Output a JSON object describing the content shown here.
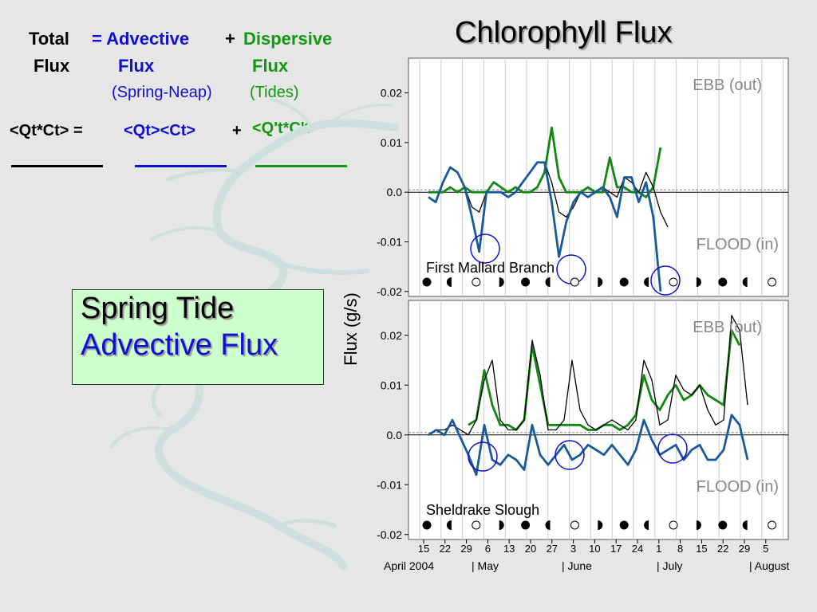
{
  "equation": {
    "total": "Total",
    "total_flux": "Flux",
    "equals_advective": "= Advective",
    "plus1": "+",
    "dispersive": "Dispersive",
    "adv_flux": "Flux",
    "disp_flux": "Flux",
    "spring_neap": "(Spring-Neap)",
    "tides": "(Tides)",
    "qtct": "<Qt*Ct> =",
    "qtct_adv": "<Qt><Ct>",
    "plus2": "+",
    "qtct_disp": "<Q't*C't>"
  },
  "spring_box": {
    "line1": "Spring Tide",
    "line2": "Advective Flux"
  },
  "colors": {
    "advective": "#1a5a9a",
    "dispersive": "#118811",
    "total": "#000000",
    "map": "#cde0de"
  },
  "chart_data": [
    {
      "type": "line",
      "title": "Chlorophyll Flux",
      "station": "First Mallard Branch",
      "ylabel": "Flux (g/s)",
      "ylim": [
        -0.021,
        0.027
      ],
      "yticks": [
        "0.02",
        "0.01",
        "0.0",
        "-0.01",
        "-0.02"
      ],
      "ebb_label": "EBB (out)",
      "flood_label": "FLOOD (in)",
      "moon_phases": [
        "full",
        "last",
        "new",
        "first",
        "full",
        "last",
        "new",
        "first",
        "full",
        "last",
        "new",
        "first",
        "full",
        "last",
        "new"
      ],
      "series": [
        {
          "name": "Total",
          "x": [
            0,
            2,
            4,
            6,
            8,
            10,
            12,
            14,
            16,
            18,
            20,
            22,
            24,
            26,
            28,
            30,
            32,
            34,
            36,
            38,
            40,
            42,
            44,
            46,
            48,
            50,
            52,
            54,
            56,
            58,
            60,
            62,
            64,
            66,
            68,
            70,
            72,
            74,
            76,
            78,
            80,
            82,
            84,
            86,
            88,
            90,
            92,
            94,
            96,
            98,
            100
          ],
          "y": [
            -0.001,
            -0.002,
            0.002,
            0.005,
            0.004,
            0.001,
            -0.003,
            -0.004,
            0.0,
            0.0,
            0.0,
            -0.001,
            0.0,
            0.002,
            0.004,
            0.006,
            0.006,
            0.002,
            -0.004,
            -0.005,
            -0.003,
            0.0,
            -0.001,
            0.0,
            0.001,
            0.0,
            -0.001,
            0.003,
            0.002,
            0.0,
            0.004,
            0.001,
            -0.004,
            -0.007,
            null,
            null,
            null,
            null,
            null,
            null,
            null,
            null,
            null,
            null,
            null,
            null,
            null,
            null,
            null,
            null,
            null
          ]
        },
        {
          "name": "Dispersive",
          "x": [
            0,
            2,
            4,
            6,
            8,
            10,
            12,
            14,
            16,
            18,
            20,
            22,
            24,
            26,
            28,
            30,
            32,
            34,
            36,
            38,
            40,
            42,
            44,
            46,
            48,
            50,
            52,
            54,
            56,
            58,
            60,
            62,
            64,
            66
          ],
          "y": [
            0.0,
            0.0,
            0.0,
            0.001,
            0.0,
            0.001,
            0.0,
            0.0,
            0.0,
            0.002,
            0.001,
            0.0,
            0.001,
            0.0,
            0.0,
            0.001,
            0.004,
            0.013,
            0.003,
            0.0,
            0.0,
            0.0,
            0.001,
            0.0,
            0.0,
            0.007,
            0.001,
            0.001,
            0.0,
            0.0,
            -0.001,
            0.001,
            0.009,
            null
          ]
        },
        {
          "name": "Advective",
          "x": [
            0,
            2,
            4,
            6,
            8,
            10,
            12,
            14,
            16,
            18,
            20,
            22,
            24,
            26,
            28,
            30,
            32,
            34,
            36,
            38,
            40,
            42,
            44,
            46,
            48,
            50,
            52,
            54,
            56,
            58,
            60,
            62,
            64,
            66
          ],
          "y": [
            -0.001,
            -0.002,
            0.002,
            0.005,
            0.004,
            0.001,
            -0.005,
            -0.012,
            0.0,
            0.0,
            0.0,
            -0.001,
            0.0,
            0.002,
            0.004,
            0.006,
            0.006,
            -0.002,
            -0.013,
            -0.006,
            -0.002,
            0.0,
            -0.001,
            0.0,
            0.001,
            -0.001,
            -0.005,
            0.003,
            0.003,
            -0.002,
            0.002,
            -0.005,
            -0.02,
            null
          ]
        }
      ]
    },
    {
      "type": "line",
      "station": "Sheldrake Slough",
      "ylim": [
        -0.021,
        0.027
      ],
      "yticks": [
        "0.02",
        "0.01",
        "0.0",
        "-0.01",
        "-0.02"
      ],
      "ebb_label": "EBB (out)",
      "flood_label": "FLOOD (in)",
      "moon_phases": [
        "full",
        "last",
        "new",
        "first",
        "full",
        "last",
        "new",
        "first",
        "full",
        "last",
        "new",
        "first",
        "full",
        "last",
        "new"
      ],
      "x_ticks": [
        "15",
        "22",
        "29",
        "6",
        "13",
        "20",
        "27",
        "3",
        "10",
        "17",
        "24",
        "1",
        "8",
        "15",
        "22",
        "29",
        "5"
      ],
      "month_labels": [
        "April 2004",
        "| May",
        "| June",
        "| July",
        "| August"
      ],
      "series": [
        {
          "name": "Total",
          "x": [
            0,
            1,
            2,
            3,
            5,
            6,
            7,
            8,
            9,
            10,
            11,
            12,
            13,
            14,
            15,
            16,
            17,
            18,
            19,
            20,
            21,
            22,
            23,
            24,
            25,
            26,
            27,
            28,
            29,
            30,
            31,
            32,
            33,
            34,
            35,
            36,
            37,
            38,
            39,
            40
          ],
          "y": [
            0.0,
            0.001,
            0.001,
            0.002,
            0.0,
            0.003,
            0.011,
            0.015,
            0.003,
            0.001,
            0.001,
            0.003,
            0.019,
            0.012,
            0.001,
            0.001,
            0.003,
            0.015,
            0.005,
            0.002,
            0.001,
            0.002,
            0.003,
            0.002,
            0.001,
            0.003,
            0.015,
            0.011,
            0.002,
            0.003,
            0.012,
            0.009,
            0.008,
            0.01,
            0.005,
            0.002,
            0.003,
            0.024,
            0.021,
            0.006
          ]
        },
        {
          "name": "Dispersive",
          "x": [
            5,
            6,
            7,
            8,
            9,
            10,
            11,
            12,
            13,
            14,
            15,
            16,
            17,
            18,
            19,
            20,
            21,
            22,
            23,
            24,
            25,
            26,
            27,
            28,
            29,
            30,
            31,
            32,
            33,
            34,
            35,
            36,
            37,
            38,
            39
          ],
          "y": [
            0.002,
            0.003,
            0.013,
            0.006,
            0.002,
            0.002,
            0.001,
            0.003,
            0.018,
            0.01,
            0.002,
            0.002,
            0.002,
            0.002,
            0.002,
            0.001,
            0.001,
            0.002,
            0.002,
            0.001,
            0.002,
            0.004,
            0.012,
            0.007,
            0.005,
            0.008,
            0.01,
            0.007,
            0.008,
            0.01,
            0.008,
            0.007,
            0.006,
            0.021,
            0.018
          ]
        },
        {
          "name": "Advective",
          "x": [
            0,
            1,
            2,
            3,
            5,
            6,
            7,
            8,
            9,
            10,
            11,
            12,
            13,
            14,
            15,
            16,
            17,
            18,
            19,
            20,
            21,
            22,
            23,
            24,
            25,
            26,
            27,
            28,
            29,
            30,
            31,
            32,
            33,
            34,
            35,
            36,
            37,
            38,
            39,
            40
          ],
          "y": [
            0.0,
            0.001,
            0.0,
            0.003,
            -0.004,
            -0.008,
            0.002,
            -0.005,
            -0.006,
            -0.004,
            -0.005,
            -0.007,
            0.002,
            -0.004,
            -0.006,
            -0.004,
            -0.002,
            -0.005,
            -0.004,
            -0.002,
            -0.003,
            -0.004,
            -0.002,
            -0.004,
            -0.006,
            -0.003,
            0.003,
            -0.001,
            -0.004,
            -0.003,
            -0.002,
            -0.005,
            -0.003,
            -0.002,
            -0.005,
            -0.005,
            -0.003,
            0.004,
            0.002,
            -0.005
          ]
        }
      ]
    }
  ]
}
